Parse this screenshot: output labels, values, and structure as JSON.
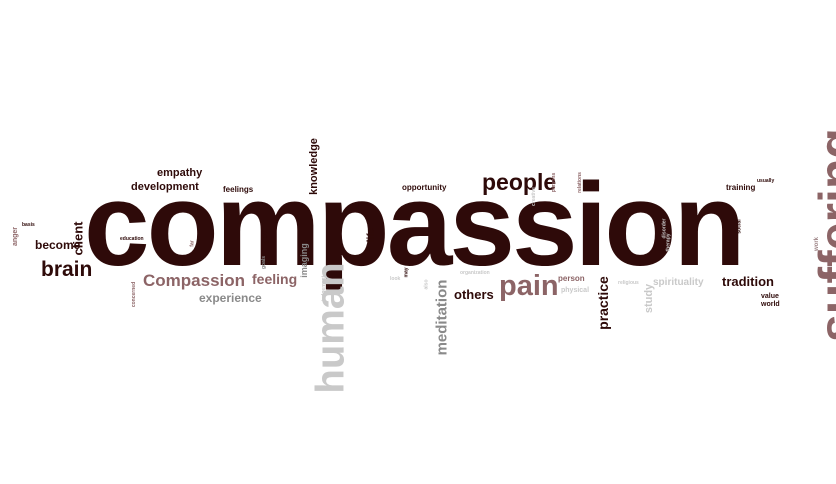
{
  "colors": {
    "dark": "#2e0a09",
    "rose": "#8c6466",
    "mauve": "#9e8587",
    "grey": "#8a8a8a",
    "light": "#c9c9c9"
  },
  "words": {
    "compassion": "compassion",
    "suffering": "suffering",
    "human": "human",
    "pain": "pain",
    "people": "people",
    "brain": "brain",
    "compassion_cap": "Compassion",
    "meditation": "meditation",
    "practice": "practice",
    "feeling": "feeling",
    "tradition": "tradition",
    "others": "others",
    "client": "client",
    "become": "become",
    "development": "development",
    "empathy": "empathy",
    "experience": "experience",
    "knowledge": "knowledge",
    "spirituality": "spirituality",
    "study": "study",
    "opportunity": "opportunity",
    "training": "training",
    "feelings": "feelings",
    "life": "life",
    "imaging": "imaging",
    "person": "person",
    "physical": "physical",
    "value": "value",
    "world": "world",
    "god": "god",
    "anger": "anger",
    "concerned": "concerned",
    "usually": "usually",
    "work": "work",
    "social": "social",
    "basis": "basis",
    "education": "education",
    "far": "far",
    "goals": "goals",
    "judgement": "judgement",
    "may": "may",
    "look": "look",
    "organization": "organization",
    "also": "also",
    "persons": "persons",
    "relations": "relations",
    "creative": "creative",
    "religious": "religious",
    "therapy": "therapy",
    "disorder": "disorder"
  }
}
